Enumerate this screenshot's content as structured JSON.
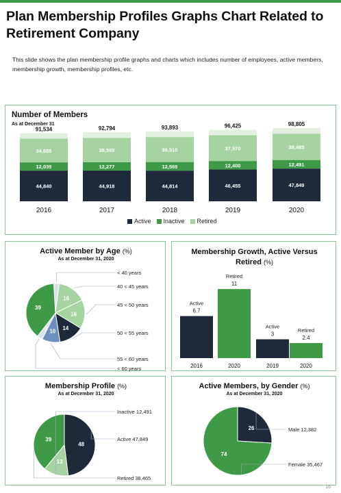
{
  "page": {
    "title": "Plan Membership Profiles Graphs Chart Related to Retirement Company",
    "description": "This slide shows the plan membership profile graphs and charts which includes number of employees, active members, membership growth, membership profiles, etc.",
    "page_number": "16"
  },
  "colors": {
    "active": "#1e2a3a",
    "inactive": "#3f9a47",
    "retired": "#a6d4a0",
    "top": "#e3f0e1",
    "accent_blue": "#6b8fbf",
    "light_gray": "#d9e2ea"
  },
  "chart_data": [
    {
      "id": "members",
      "type": "bar",
      "title": "Number of Members",
      "subtitle": "As at December 31",
      "categories": [
        "2016",
        "2017",
        "2018",
        "2019",
        "2020"
      ],
      "series": [
        {
          "name": "Active",
          "values": [
            44840,
            44918,
            44814,
            46455,
            47849
          ],
          "labels": [
            "44,840",
            "44,918",
            "44,814",
            "46,455",
            "47,849"
          ]
        },
        {
          "name": "Inactive",
          "values": [
            12039,
            12277,
            12569,
            12400,
            12491
          ],
          "labels": [
            "12,039",
            "12,277",
            "12,569",
            "12,400",
            "12,491"
          ]
        },
        {
          "name": "Retired",
          "values": [
            34655,
            35599,
            36510,
            37570,
            38465
          ],
          "labels": [
            "34,655",
            "35,599",
            "36,510",
            "37,570",
            "38,465"
          ]
        }
      ],
      "totals": [
        "91,534",
        "92,794",
        "93,893",
        "96,425",
        "98,805"
      ],
      "legend_position": "bottom"
    },
    {
      "id": "age",
      "type": "pie",
      "title": "Active Member by Age",
      "title_unit": "(%)",
      "subtitle": "As at December 31, 2020",
      "slices": [
        {
          "label": "< 40 years",
          "value": 3,
          "show": ""
        },
        {
          "label": "40 < 45 years",
          "value": 16,
          "show": "16"
        },
        {
          "label": "45 < 50 years",
          "value": 16,
          "show": "16"
        },
        {
          "label": "50 < 55 years",
          "value": 14,
          "show": "14"
        },
        {
          "label": "55 < 60 years",
          "value": 10,
          "show": "10"
        },
        {
          "label": "< 60 years",
          "value": 3,
          "show": "3"
        },
        {
          "label": "",
          "value": 39,
          "show": "39"
        }
      ]
    },
    {
      "id": "growth",
      "type": "bar",
      "title": "Membership Growth, Active Versus Retired",
      "title_unit": "(%)",
      "categories": [
        "2016",
        "2020",
        "2019",
        "2020"
      ],
      "values": [
        6.7,
        11,
        3,
        2.4
      ],
      "value_labels": [
        "6.7",
        "11",
        "3",
        "2.4"
      ],
      "bar_labels": [
        "Active",
        "Retired",
        "Active",
        "Retired"
      ],
      "bar_colors": [
        "#1e2a3a",
        "#3f9a47",
        "#1e2a3a",
        "#3f9a47"
      ],
      "ylim": [
        0,
        12
      ]
    },
    {
      "id": "profile",
      "type": "pie",
      "title": "Membership Profile",
      "title_unit": "(%)",
      "subtitle": "As at December 31, 2020",
      "slices": [
        {
          "label": "Active 47,849",
          "value": 48,
          "show": "48",
          "color": "#1e2a3a"
        },
        {
          "label": "Inactive 12,491",
          "value": 13,
          "show": "13",
          "color": "#a6d4a0"
        },
        {
          "label": "Retired 38,465",
          "value": 39,
          "show": "39",
          "color": "#3f9a47"
        }
      ]
    },
    {
      "id": "gender",
      "type": "pie",
      "title": "Active Members, by Gender",
      "title_unit": "(%)",
      "subtitle": "As at December 31, 2020",
      "slices": [
        {
          "label": "Male 12,382",
          "value": 26,
          "show": "26",
          "color": "#1e2a3a"
        },
        {
          "label": "Female 35,467",
          "value": 74,
          "show": "74",
          "color": "#3f9a47"
        }
      ]
    }
  ]
}
